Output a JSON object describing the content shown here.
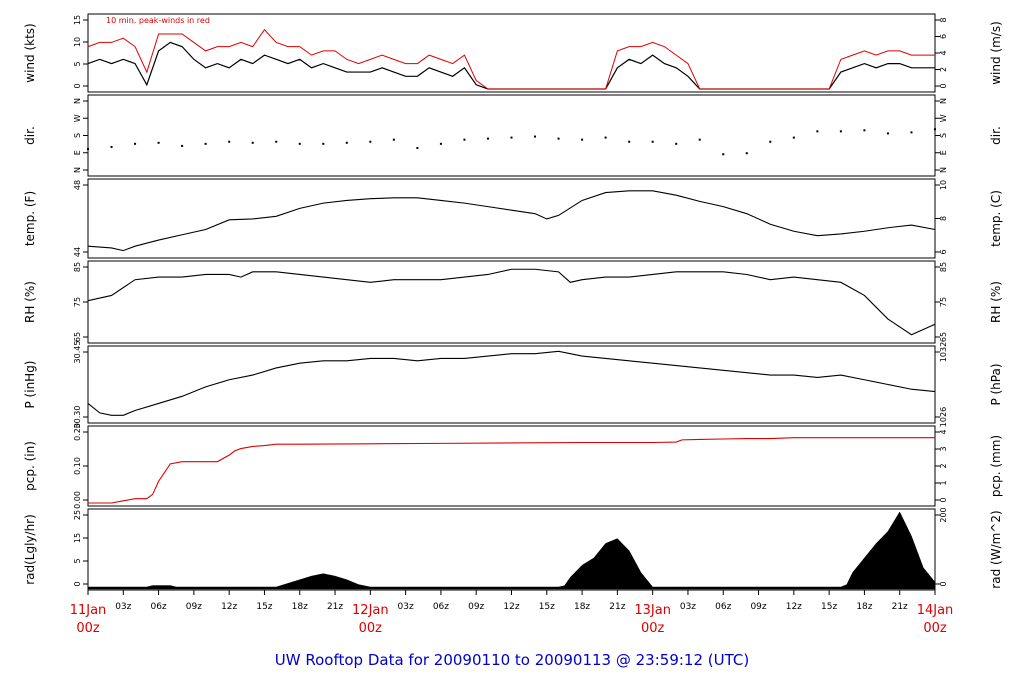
{
  "title": "UW Rooftop Data for 20090110  to  20090113 @ 23:59:12  (UTC)",
  "colors": {
    "line": "#000000",
    "accent": "#dd0000",
    "title": "#0000cc"
  },
  "chart_data": [
    {
      "type": "line",
      "panel": "wind",
      "ylabel_left": "wind (kts)",
      "ylabel_right": "wind (m/s)",
      "annotation": "10 min. peak-winds in red",
      "left_ticks": [
        "0",
        "5",
        "10",
        "15"
      ],
      "right_ticks": [
        "0",
        "2",
        "4",
        "6",
        "8"
      ],
      "ylim": [
        0,
        17
      ],
      "x_hours": [
        0,
        1,
        2,
        3,
        4,
        5,
        6,
        7,
        8,
        9,
        10,
        11,
        12,
        13,
        14,
        15,
        16,
        17,
        18,
        19,
        20,
        21,
        22,
        23,
        24,
        25,
        26,
        27,
        28,
        29,
        30,
        31,
        32,
        33,
        34,
        35,
        36,
        37,
        38,
        39,
        40,
        41,
        42,
        43,
        44,
        45,
        46,
        47,
        48,
        49,
        50,
        51,
        52,
        53,
        54,
        55,
        56,
        57,
        58,
        59,
        60,
        61,
        62,
        63,
        64,
        65,
        66,
        67,
        68,
        69,
        70,
        71,
        72
      ],
      "series": [
        {
          "role": "mean",
          "values": [
            6,
            7,
            6,
            7,
            6,
            1,
            9,
            11,
            10,
            7,
            5,
            6,
            5,
            7,
            6,
            8,
            7,
            6,
            7,
            5,
            6,
            5,
            4,
            4,
            4,
            5,
            4,
            3,
            3,
            5,
            4,
            3,
            5,
            1,
            0,
            0,
            0,
            0,
            0,
            0,
            0,
            0,
            0,
            0,
            0,
            5,
            7,
            6,
            8,
            6,
            5,
            3,
            0,
            0,
            0,
            0,
            0,
            0,
            0,
            0,
            0,
            0,
            0,
            0,
            4,
            5,
            6,
            5,
            6,
            6,
            5,
            5,
            5
          ]
        },
        {
          "role": "peak",
          "values": [
            10,
            11,
            11,
            12,
            10,
            4,
            13,
            13,
            13,
            11,
            9,
            10,
            10,
            11,
            10,
            14,
            11,
            10,
            10,
            8,
            9,
            9,
            7,
            6,
            7,
            8,
            7,
            6,
            6,
            8,
            7,
            6,
            8,
            2,
            0,
            0,
            0,
            0,
            0,
            0,
            0,
            0,
            0,
            0,
            0,
            9,
            10,
            10,
            11,
            10,
            8,
            6,
            0,
            0,
            0,
            0,
            0,
            0,
            0,
            0,
            0,
            0,
            0,
            0,
            7,
            8,
            9,
            8,
            9,
            9,
            8,
            8,
            8
          ]
        }
      ]
    },
    {
      "type": "scatter",
      "panel": "dir",
      "ylabel_left": "dir.",
      "ylabel_right": "dir.",
      "left_ticks": [
        "N",
        "E",
        "S",
        "W",
        "N"
      ],
      "right_ticks": [
        "N",
        "E",
        "S",
        "W",
        "N"
      ],
      "ylim": [
        0,
        360
      ],
      "x_hours": [
        0,
        2,
        4,
        6,
        8,
        10,
        12,
        14,
        16,
        18,
        20,
        22,
        24,
        26,
        28,
        30,
        32,
        34,
        36,
        38,
        40,
        42,
        44,
        46,
        48,
        50,
        52,
        54,
        56,
        58,
        60,
        62,
        64,
        66,
        68,
        70,
        72
      ],
      "values": [
        115,
        125,
        140,
        145,
        130,
        140,
        150,
        145,
        150,
        140,
        140,
        145,
        150,
        160,
        120,
        140,
        160,
        165,
        170,
        175,
        165,
        160,
        170,
        150,
        150,
        140,
        160,
        90,
        95,
        150,
        170,
        200,
        200,
        205,
        190,
        195,
        210
      ]
    },
    {
      "type": "line",
      "panel": "temp",
      "ylabel_left": "temp. (F)",
      "ylabel_right": "temp. (C)",
      "left_ticks": [
        "44",
        "48"
      ],
      "right_ticks": [
        "6",
        "8",
        "10"
      ],
      "ylim": [
        42.5,
        50.8
      ],
      "x_hours": [
        0,
        2,
        3,
        4,
        6,
        8,
        10,
        12,
        14,
        16,
        18,
        20,
        22,
        24,
        26,
        28,
        30,
        32,
        34,
        36,
        38,
        39,
        40,
        42,
        44,
        46,
        48,
        50,
        52,
        54,
        56,
        58,
        60,
        62,
        64,
        66,
        68,
        70,
        72
      ],
      "values": [
        43.5,
        43.3,
        43.0,
        43.5,
        44.2,
        44.8,
        45.4,
        46.5,
        46.6,
        46.9,
        47.8,
        48.4,
        48.7,
        48.9,
        49.0,
        49.0,
        48.7,
        48.4,
        48.0,
        47.6,
        47.2,
        46.6,
        47.0,
        48.7,
        49.6,
        49.8,
        49.8,
        49.3,
        48.6,
        48.0,
        47.2,
        46.0,
        45.2,
        44.7,
        44.9,
        45.2,
        45.6,
        45.9,
        45.4
      ]
    },
    {
      "type": "line",
      "panel": "rh",
      "ylabel_left": "RH (%)",
      "ylabel_right": "RH (%)",
      "left_ticks": [
        "65",
        "75",
        "85"
      ],
      "right_ticks": [
        "65",
        "75",
        "85"
      ],
      "ylim": [
        64,
        93
      ],
      "x_hours": [
        0,
        2,
        4,
        6,
        8,
        10,
        12,
        13,
        14,
        16,
        18,
        20,
        22,
        24,
        26,
        28,
        30,
        32,
        34,
        36,
        38,
        40,
        41,
        42,
        44,
        46,
        48,
        50,
        52,
        54,
        56,
        58,
        60,
        62,
        64,
        66,
        68,
        70,
        72
      ],
      "values": [
        79,
        81,
        87,
        88,
        88,
        89,
        89,
        88,
        90,
        90,
        89,
        88,
        87,
        86,
        87,
        87,
        87,
        88,
        89,
        91,
        91,
        90,
        86,
        87,
        88,
        88,
        89,
        90,
        90,
        90,
        89,
        87,
        88,
        87,
        86,
        81,
        72,
        66,
        70
      ]
    },
    {
      "type": "line",
      "panel": "pressure",
      "ylabel_left": "P (inHg)",
      "ylabel_right": "P (hPa)",
      "left_ticks": [
        "30.30",
        "30.45"
      ],
      "right_ticks": [
        "1026",
        "1032"
      ],
      "ylim": [
        30.27,
        30.57
      ],
      "x_hours": [
        0,
        1,
        2,
        3,
        4,
        6,
        8,
        10,
        12,
        14,
        16,
        18,
        20,
        22,
        24,
        26,
        28,
        30,
        32,
        34,
        36,
        38,
        40,
        42,
        44,
        46,
        48,
        50,
        52,
        54,
        56,
        58,
        60,
        62,
        64,
        66,
        68,
        70,
        72
      ],
      "values": [
        30.34,
        30.3,
        30.29,
        30.29,
        30.31,
        30.34,
        30.37,
        30.41,
        30.44,
        30.46,
        30.49,
        30.51,
        30.52,
        30.52,
        30.53,
        30.53,
        30.52,
        30.53,
        30.53,
        30.54,
        30.55,
        30.55,
        30.56,
        30.54,
        30.53,
        30.52,
        30.51,
        30.5,
        30.49,
        30.48,
        30.47,
        30.46,
        30.46,
        30.45,
        30.46,
        30.44,
        30.42,
        30.4,
        30.39
      ]
    },
    {
      "type": "line",
      "panel": "precip",
      "ylabel_left": "pcp. (in)",
      "ylabel_right": "pcp. (mm)",
      "left_ticks": [
        "0.00",
        "0.10",
        "0.20"
      ],
      "right_ticks": [
        "0",
        "1",
        "2",
        "3",
        "4"
      ],
      "ylim": [
        0,
        0.17
      ],
      "x_hours": [
        0,
        2,
        3,
        4,
        5,
        5.5,
        6,
        7,
        8,
        10,
        11,
        12,
        12.5,
        13,
        14,
        15,
        16,
        18,
        24,
        30,
        36,
        42,
        48,
        50,
        50.5,
        52,
        54,
        56,
        58,
        60,
        66,
        72
      ],
      "values": [
        0,
        0,
        0.005,
        0.01,
        0.01,
        0.02,
        0.05,
        0.09,
        0.095,
        0.095,
        0.095,
        0.11,
        0.12,
        0.125,
        0.13,
        0.132,
        0.135,
        0.135,
        0.136,
        0.137,
        0.138,
        0.139,
        0.139,
        0.14,
        0.145,
        0.146,
        0.147,
        0.148,
        0.148,
        0.15,
        0.15,
        0.15
      ]
    },
    {
      "type": "area",
      "panel": "radiation",
      "ylabel_left": "rad(Lgly/hr)",
      "ylabel_right": "rad (W/m^2)",
      "left_ticks": [
        "0",
        "5",
        "15",
        "25"
      ],
      "right_ticks": [
        "0",
        "200"
      ],
      "ylim": [
        0,
        310
      ],
      "x_hours": [
        0,
        5,
        5.5,
        7,
        7.5,
        16,
        17,
        18,
        19,
        20,
        21,
        22,
        23,
        24,
        40,
        40.5,
        41,
        42,
        43,
        44,
        45,
        46,
        47,
        48,
        64,
        64.5,
        65,
        66,
        67,
        68,
        69,
        70,
        71,
        72
      ],
      "values": [
        0,
        0,
        6,
        6,
        0,
        0,
        15,
        30,
        45,
        55,
        45,
        30,
        10,
        0,
        0,
        5,
        40,
        90,
        120,
        180,
        200,
        150,
        60,
        0,
        0,
        10,
        60,
        120,
        180,
        230,
        310,
        210,
        80,
        20
      ]
    }
  ],
  "x_axis": {
    "hour_labels": [
      {
        "h": 3,
        "t": "03z"
      },
      {
        "h": 6,
        "t": "06z"
      },
      {
        "h": 9,
        "t": "09z"
      },
      {
        "h": 12,
        "t": "12z"
      },
      {
        "h": 15,
        "t": "15z"
      },
      {
        "h": 18,
        "t": "18z"
      },
      {
        "h": 21,
        "t": "21z"
      },
      {
        "h": 27,
        "t": "03z"
      },
      {
        "h": 30,
        "t": "06z"
      },
      {
        "h": 33,
        "t": "09z"
      },
      {
        "h": 36,
        "t": "12z"
      },
      {
        "h": 39,
        "t": "15z"
      },
      {
        "h": 42,
        "t": "18z"
      },
      {
        "h": 45,
        "t": "21z"
      },
      {
        "h": 51,
        "t": "03z"
      },
      {
        "h": 54,
        "t": "06z"
      },
      {
        "h": 57,
        "t": "09z"
      },
      {
        "h": 60,
        "t": "12z"
      },
      {
        "h": 63,
        "t": "15z"
      },
      {
        "h": 66,
        "t": "18z"
      },
      {
        "h": 69,
        "t": "21z"
      }
    ],
    "day_labels": [
      {
        "h": 0,
        "date": "11Jan",
        "time": "00z"
      },
      {
        "h": 24,
        "date": "12Jan",
        "time": "00z"
      },
      {
        "h": 48,
        "date": "13Jan",
        "time": "00z"
      },
      {
        "h": 72,
        "date": "14Jan",
        "time": "00z"
      }
    ]
  }
}
